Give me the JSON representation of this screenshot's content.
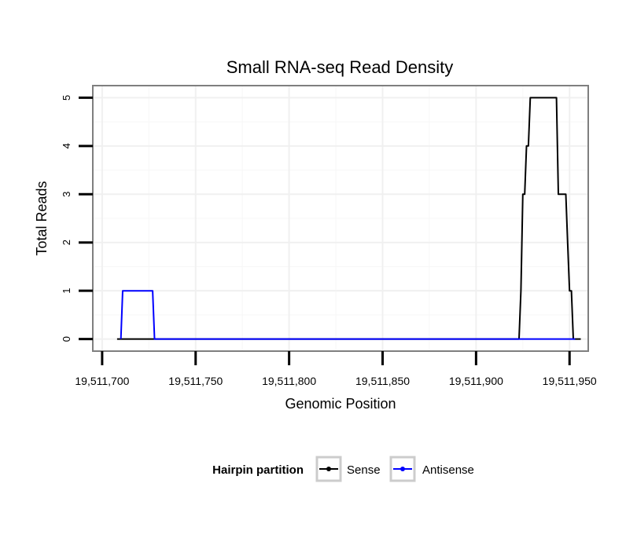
{
  "chart_data": {
    "type": "line",
    "title": "Small RNA-seq Read Density",
    "xlabel": "Genomic Position",
    "ylabel": "Total Reads",
    "xlim": [
      19511695,
      19511960
    ],
    "ylim": [
      -0.25,
      5.25
    ],
    "x_ticks": [
      19511700,
      19511750,
      19511800,
      19511850,
      19511900,
      19511950
    ],
    "x_tick_labels": [
      "19,511,700",
      "19,511,750",
      "19,511,800",
      "19,511,850",
      "19,511,900",
      "19,511,950"
    ],
    "y_ticks": [
      0,
      1,
      2,
      3,
      4,
      5
    ],
    "y_tick_labels": [
      "0",
      "1",
      "2",
      "3",
      "4",
      "5"
    ],
    "grid": true,
    "legend": {
      "title": "Hairpin partition",
      "position": "bottom",
      "entries": [
        "Sense",
        "Antisense"
      ]
    },
    "series": [
      {
        "name": "Sense",
        "color": "#000000",
        "x": [
          19511708,
          19511923,
          19511924,
          19511925,
          19511926,
          19511927,
          19511928,
          19511929,
          19511930,
          19511943,
          19511944,
          19511947,
          19511948,
          19511949,
          19511950,
          19511951,
          19511952,
          19511953,
          19511954,
          19511955,
          19511956
        ],
        "y": [
          0,
          0,
          1,
          3,
          3,
          4,
          4,
          5,
          5,
          5,
          3,
          3,
          3,
          2,
          1,
          1,
          0,
          0,
          0,
          0,
          0
        ]
      },
      {
        "name": "Antisense",
        "color": "#0000ff",
        "x": [
          19511710,
          19511711,
          19511712,
          19511727,
          19511728,
          19511729,
          19511923,
          19511953
        ],
        "y": [
          0,
          1,
          1,
          1,
          0,
          0,
          0,
          0
        ]
      }
    ]
  }
}
